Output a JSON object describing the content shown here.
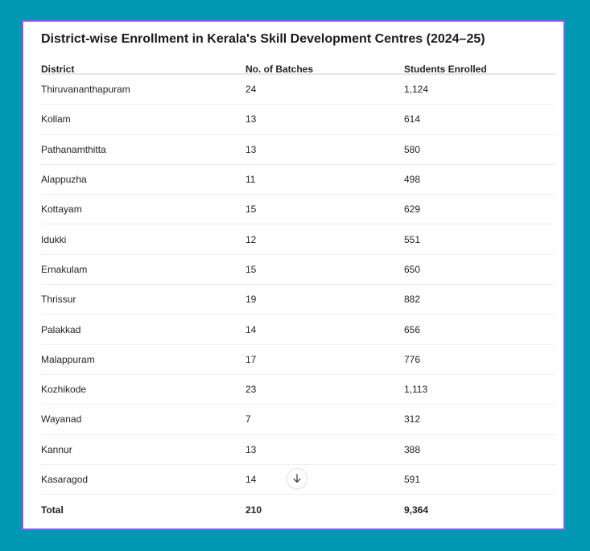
{
  "colors": {
    "background": "#0097b2",
    "card_border": "#8b5cf6",
    "card": "#ffffff"
  },
  "title": "District-wise Enrollment in Kerala's Skill Development Centres (2024–25)",
  "table": {
    "headers": [
      "District",
      "No. of Batches",
      "Students Enrolled"
    ],
    "rows": [
      [
        "Thiruvananthapuram",
        "24",
        "1,124"
      ],
      [
        "Kollam",
        "13",
        "614"
      ],
      [
        "Pathanamthitta",
        "13",
        "580"
      ],
      [
        "Alappuzha",
        "11",
        "498"
      ],
      [
        "Kottayam",
        "15",
        "629"
      ],
      [
        "Idukki",
        "12",
        "551"
      ],
      [
        "Ernakulam",
        "15",
        "650"
      ],
      [
        "Thrissur",
        "19",
        "882"
      ],
      [
        "Palakkad",
        "14",
        "656"
      ],
      [
        "Malappuram",
        "17",
        "776"
      ],
      [
        "Kozhikode",
        "23",
        "1,113"
      ],
      [
        "Wayanad",
        "7",
        "312"
      ],
      [
        "Kannur",
        "13",
        "388"
      ],
      [
        "Kasaragod",
        "14",
        "591"
      ]
    ],
    "total": [
      "Total",
      "210",
      "9,364"
    ]
  },
  "scroll_button": {
    "icon": "arrow-down-icon"
  }
}
